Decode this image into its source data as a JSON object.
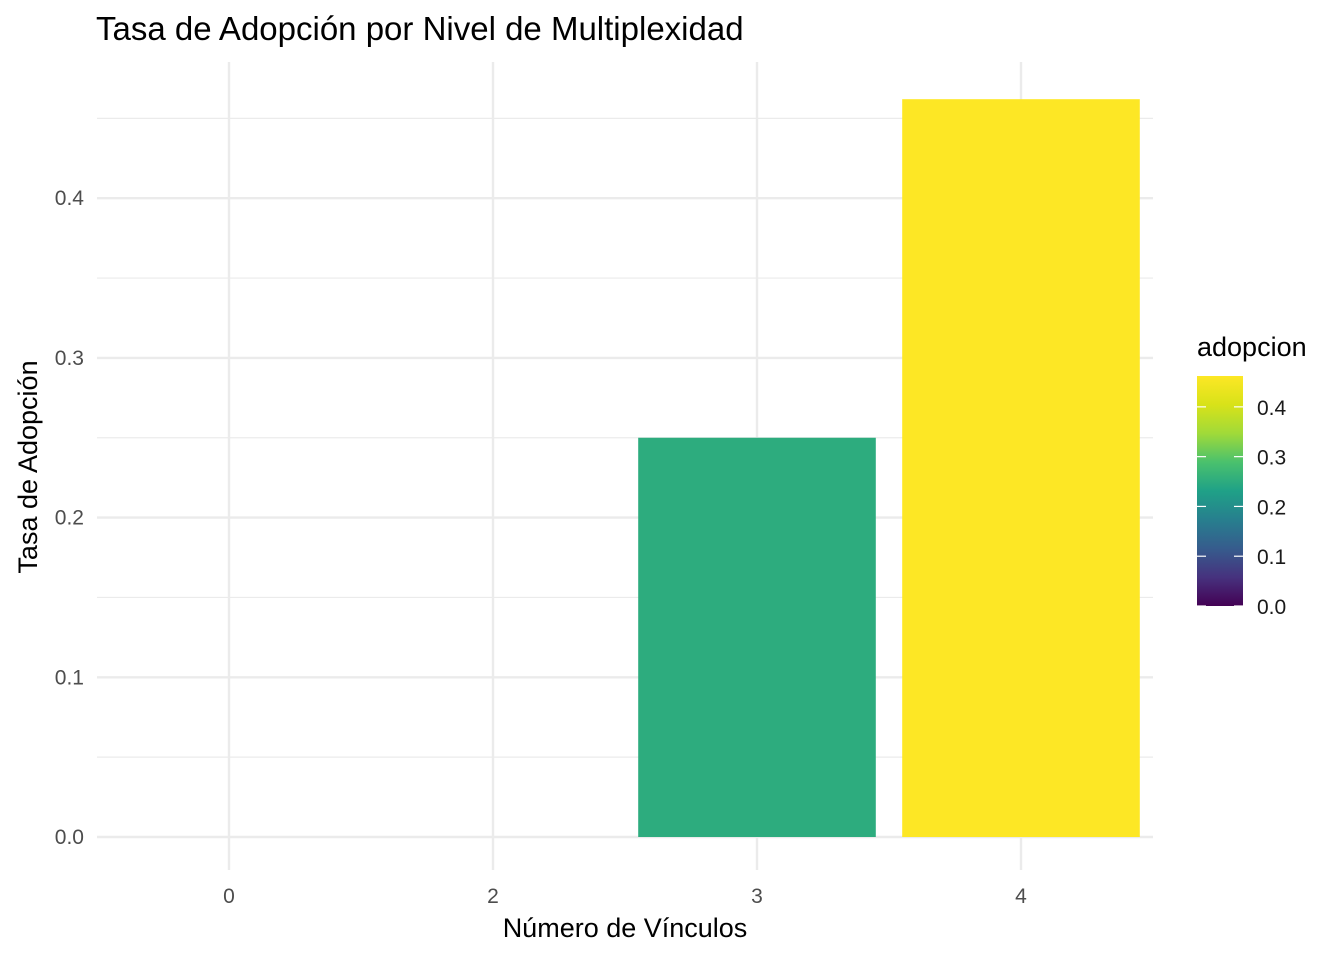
{
  "chart_data": {
    "type": "bar",
    "title": "Tasa de Adopción por Nivel de Multiplexidad",
    "xlabel": "Número de Vínculos",
    "ylabel": "Tasa de Adopción",
    "categories": [
      "0",
      "2",
      "3",
      "4"
    ],
    "values": [
      0.0,
      0.0,
      0.25,
      0.462
    ],
    "ylim": [
      0,
      0.462
    ],
    "yticks": [
      0.0,
      0.1,
      0.2,
      0.3,
      0.4
    ],
    "ytick_labels": [
      "0.0",
      "0.1",
      "0.2",
      "0.3",
      "0.4"
    ],
    "grid": true,
    "legend": {
      "title": "adopcion",
      "placement": "right",
      "type": "colorbar",
      "palette": "viridis",
      "range": [
        0,
        0.462
      ],
      "ticks": [
        0.0,
        0.1,
        0.2,
        0.3,
        0.4
      ],
      "tick_labels": [
        "0.0",
        "0.1",
        "0.2",
        "0.3",
        "0.4"
      ]
    }
  }
}
